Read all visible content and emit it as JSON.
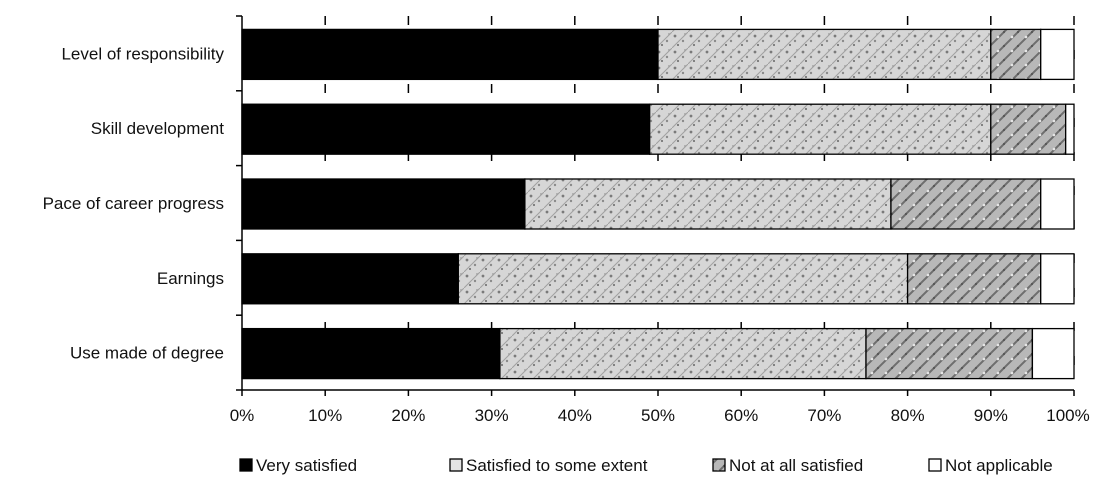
{
  "chart_data": {
    "type": "bar",
    "orientation": "horizontal",
    "stacked": true,
    "normalized": true,
    "categories": [
      "Level of responsibility",
      "Skill development",
      "Pace of career progress",
      "Earnings",
      "Use made of degree"
    ],
    "series": [
      {
        "name": "Very satisfied",
        "values": [
          50,
          49,
          34,
          26,
          31
        ],
        "color": "#000000",
        "fill": "solid"
      },
      {
        "name": "Satisfied to some extent",
        "values": [
          40,
          41,
          44,
          54,
          44
        ],
        "color": "#9a9a9a",
        "fill": "speckled"
      },
      {
        "name": "Not at all satisfied",
        "values": [
          6,
          9,
          18,
          16,
          20
        ],
        "color": "#a8a8a8",
        "fill": "speckled"
      },
      {
        "name": "Not applicable",
        "values": [
          4,
          1,
          4,
          4,
          5
        ],
        "color": "#ffffff",
        "fill": "solid"
      }
    ],
    "xlim": [
      0,
      100
    ],
    "x_ticks": [
      "0%",
      "10%",
      "20%",
      "30%",
      "40%",
      "50%",
      "60%",
      "70%",
      "80%",
      "90%",
      "100%"
    ],
    "grid": "vertical dashed",
    "legend": "bottom",
    "title": "",
    "xlabel": "",
    "ylabel": ""
  }
}
